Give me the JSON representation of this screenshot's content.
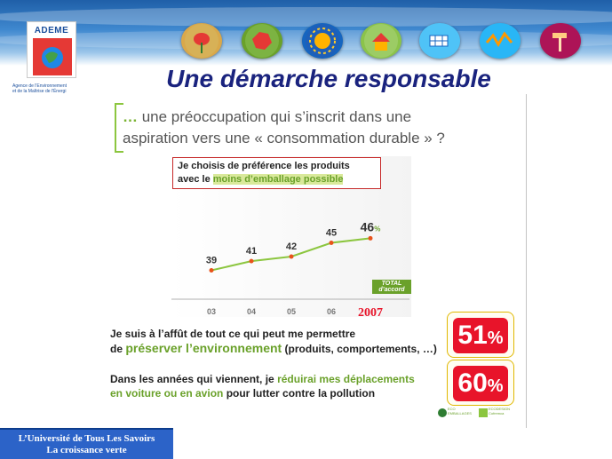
{
  "header": {
    "logo_title": "ADEME",
    "logo_caption_line1": "Agence de l'Environnement",
    "logo_caption_line2": "et de la Maîtrise de l'Énergi"
  },
  "icons": [
    "flower-icon",
    "earth-icon",
    "sun-icon",
    "house-icon",
    "solar-panel-icon",
    "wave-icon",
    "hammer-icon"
  ],
  "slide_title": "Une démarche responsable",
  "question": {
    "line1_ellipsis": "…",
    "line1_text": " une préoccupation qui s’inscrit dans une",
    "line2_text": "aspiration vers une « consommation durable » ?"
  },
  "chart_data": {
    "type": "line",
    "header_line1": "Je choisis de préférence les produits",
    "header_line2_prefix": "avec le ",
    "header_line2_highlight": "moins d’emballage possible",
    "categories": [
      "03",
      "04",
      "05",
      "06",
      "2007"
    ],
    "values": [
      39,
      41,
      42,
      45,
      46
    ],
    "value_labels": [
      "39",
      "41",
      "42",
      "45",
      "46"
    ],
    "last_unit": "%",
    "ylim": [
      30,
      60
    ],
    "badge_line1": "TOTAL",
    "badge_line2": "d’accord",
    "color": "#8cc63f",
    "point_color": "#e8531b"
  },
  "stats": [
    {
      "line1": "Je suis à l’affût de tout ce qui peut me permettre",
      "line2_prefix": "de ",
      "line2_highlight": "préserver l’environnement",
      "line2_suffix": " (produits, comportements, …)",
      "value": "51",
      "unit": "%"
    },
    {
      "line1_prefix": "Dans les années qui viennent, je ",
      "line1_highlight": "réduirai mes déplacements",
      "line2_highlight": "en voiture ou en avion",
      "line2_suffix": " pour lutter contre la pollution",
      "value": "60",
      "unit": "%"
    }
  ],
  "source_logos": {
    "logo1_line1": "ECO",
    "logo1_line2": "EMBALLAGES",
    "logo2_line1": "ECODESIGN",
    "logo2_line2": "Cofremca"
  },
  "footer": {
    "line1": "L’Université de Tous Les Savoirs",
    "line2": "La croissance verte"
  },
  "colors": {
    "title": "#1a237e",
    "accent_green": "#6aa12a",
    "accent_red": "#e8142a",
    "footer_bg": "#2c63c8"
  }
}
